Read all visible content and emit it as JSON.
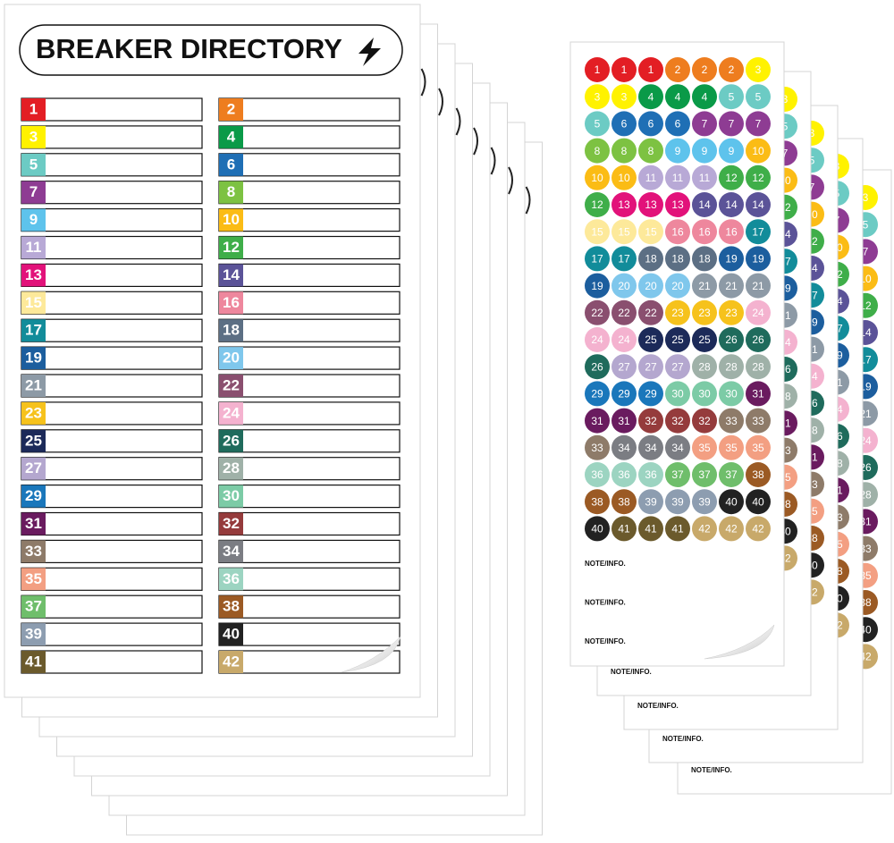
{
  "title": "BREAKER DIRECTORY",
  "breakers": [
    "1",
    "2",
    "3",
    "4",
    "5",
    "6",
    "7",
    "8",
    "9",
    "10",
    "11",
    "12",
    "13",
    "14",
    "15",
    "16",
    "17",
    "18",
    "19",
    "20",
    "21",
    "22",
    "23",
    "24",
    "25",
    "26",
    "27",
    "28",
    "29",
    "30",
    "31",
    "32",
    "33",
    "34",
    "35",
    "36",
    "37",
    "38",
    "39",
    "40",
    "41",
    "42"
  ],
  "colors": [
    "#e31e24",
    "#ee7d1f",
    "#fff200",
    "#0a9a48",
    "#6ccbc4",
    "#1f6fb5",
    "#8e3c93",
    "#7dc242",
    "#5ec3ec",
    "#fbbc15",
    "#b8a9d6",
    "#3fae49",
    "#e2127a",
    "#5b5398",
    "#fde99a",
    "#ee879d",
    "#128c9a",
    "#5c6f84",
    "#1c5e9e",
    "#7fc7ec",
    "#8d9aa6",
    "#8a4f6f",
    "#f6c21c",
    "#f4b2cf",
    "#1c2a59",
    "#1f6b5c",
    "#b4a7cf",
    "#9fb1a8",
    "#1a77bb",
    "#7ccba6",
    "#6a1b5f",
    "#953b3c",
    "#8e7b69",
    "#7b7d83",
    "#f39f82",
    "#9cd4c1",
    "#6fbe6b",
    "#9b5a24",
    "#8d9db0",
    "#222222",
    "#6b5a2c",
    "#c8a96a"
  ],
  "stickers": [
    "1",
    "1",
    "1",
    "2",
    "2",
    "2",
    "3",
    "3",
    "3",
    "4",
    "4",
    "4",
    "5",
    "5",
    "5",
    "6",
    "6",
    "6",
    "7",
    "7",
    "7",
    "8",
    "8",
    "8",
    "9",
    "9",
    "9",
    "10",
    "10",
    "10",
    "11",
    "11",
    "11",
    "12",
    "12",
    "12",
    "13",
    "13",
    "13",
    "14",
    "14",
    "14",
    "15",
    "15",
    "15",
    "16",
    "16",
    "16",
    "17",
    "17",
    "17",
    "18",
    "18",
    "18",
    "19",
    "19",
    "19",
    "20",
    "20",
    "20",
    "21",
    "21",
    "21",
    "22",
    "22",
    "22",
    "23",
    "23",
    "23",
    "24",
    "24",
    "24",
    "25",
    "25",
    "25",
    "26",
    "26",
    "26",
    "27",
    "27",
    "27",
    "28",
    "28",
    "28",
    "29",
    "29",
    "29",
    "30",
    "30",
    "30",
    "31",
    "31",
    "31",
    "32",
    "32",
    "32",
    "33",
    "33",
    "33",
    "34",
    "34",
    "34",
    "35",
    "35",
    "35",
    "36",
    "36",
    "36",
    "37",
    "37",
    "37",
    "38",
    "38",
    "38",
    "39",
    "39",
    "39",
    "40",
    "40",
    "40",
    "41",
    "41",
    "41",
    "42",
    "42",
    "42"
  ],
  "notes": [
    "NOTE/INFO.",
    "NOTE/INFO.",
    "NOTE/INFO."
  ],
  "back_notes": [
    "NOTE/INFO.",
    "NOTE/INFO.",
    "NOTE/INFO.",
    "NOTE/INFO."
  ]
}
